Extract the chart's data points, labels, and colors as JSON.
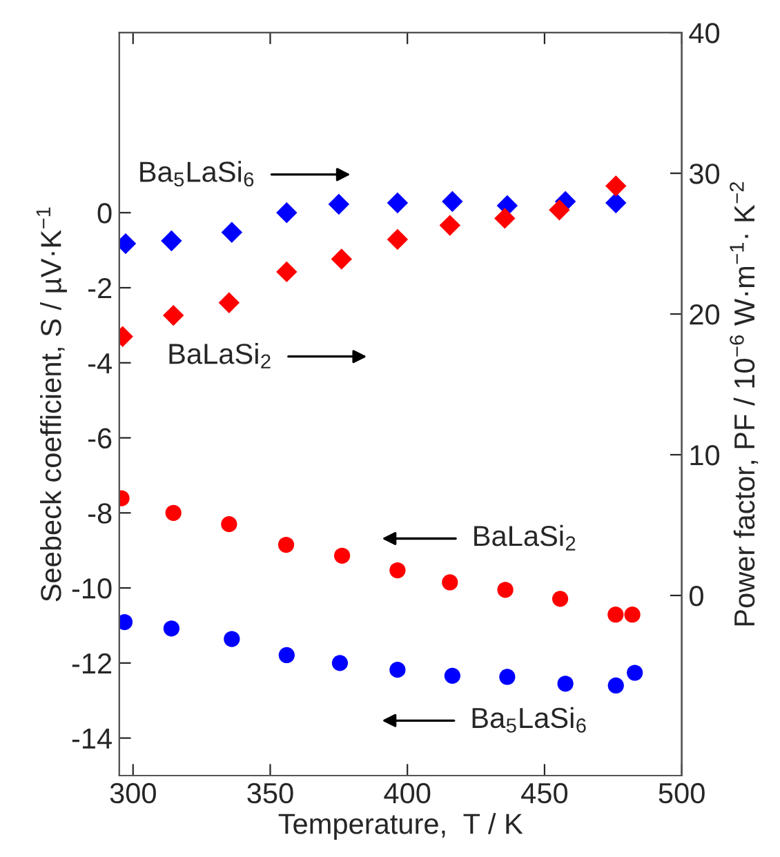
{
  "chart_data": {
    "type": "scatter",
    "xlabel": "Temperature,  T / K",
    "ylabel": "Seebeck coefficient, S / µV·K$^{−1}$",
    "y2label": "Power factor, PF / 10$^{−6}$ W·m$^{−1}$· K$^{−2}$",
    "xlim": [
      295,
      500
    ],
    "xticks": [
      300,
      350,
      400,
      450,
      500
    ],
    "ylim": [
      -15,
      4.8
    ],
    "yticks": [
      0,
      -2,
      -4,
      -6,
      -8,
      -10,
      -12,
      -14
    ],
    "y2lim": [
      -12.8,
      40
    ],
    "y2ticks": [
      0,
      10,
      20,
      30,
      40
    ],
    "grid": false,
    "legend": false,
    "series": [
      {
        "color": "#ff0000",
        "marker": "circle",
        "x": [
          295.8,
          314.7,
          335.0,
          355.8,
          376.2,
          396.4,
          415.5,
          435.7,
          455.7,
          475.9,
          482.0
        ],
        "values": [
          -7.61,
          -8.0,
          -8.3,
          -8.85,
          -9.14,
          -9.53,
          -9.85,
          -10.05,
          -10.29,
          -10.71,
          -10.71
        ]
      },
      {
        "color": "#0000ff",
        "marker": "circle",
        "x": [
          296.9,
          314.0,
          336.0,
          356.0,
          375.4,
          396.4,
          416.4,
          436.4,
          457.6,
          476.0,
          482.9
        ],
        "values": [
          -10.91,
          -11.08,
          -11.36,
          -11.79,
          -12.0,
          -12.18,
          -12.34,
          -12.37,
          -12.55,
          -12.6,
          -12.26
        ]
      },
      {
        "color": "#0000ff",
        "marker": "diamond",
        "axis": "y2",
        "x": [
          297.3,
          314.0,
          336.0,
          356.0,
          375.0,
          396.4,
          416.4,
          436.4,
          457.6,
          476.0
        ],
        "values": [
          25.0,
          25.2,
          25.8,
          27.2,
          27.8,
          27.9,
          28.0,
          27.7,
          28.0,
          27.9
        ]
      },
      {
        "color": "#ff0000",
        "marker": "diamond",
        "axis": "y2",
        "x": [
          296.2,
          314.7,
          335.0,
          356.0,
          376.0,
          396.4,
          415.5,
          435.5,
          455.4,
          476.0
        ],
        "values": [
          18.4,
          19.9,
          20.8,
          23.0,
          23.9,
          25.3,
          26.3,
          26.8,
          27.4,
          29.1
        ]
      }
    ],
    "annotations": [
      "Ba$_{5}$LaSi$_{6}$",
      "BaLaSi$_{2}$",
      "BaLaSi$_{2}$",
      "Ba$_{5}$LaSi$_{6}$"
    ]
  }
}
